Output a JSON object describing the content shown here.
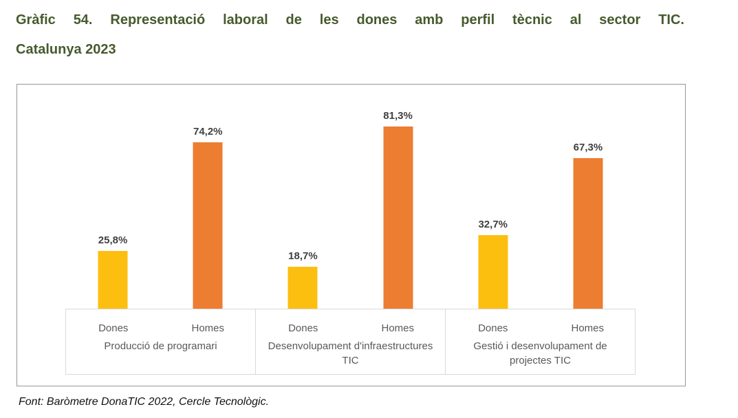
{
  "page": {
    "title_line1": "Gràfic 54. Representació laboral de les dones amb perfil tècnic al sector TIC.",
    "title_line2": "Catalunya 2023",
    "source": "Font: Baròmetre DonaTIC 2022, Cercle Tecnològic."
  },
  "colors": {
    "title_green": "#465A2D",
    "bar_dones": "#FCBF10",
    "bar_homes": "#ED7D31",
    "value_label": "#404040",
    "axis_text": "#595959",
    "frame_border": "#969696",
    "table_border": "#D9D9D9"
  },
  "chart_data": {
    "type": "bar",
    "categories": [
      "Producció de programari",
      "Desenvolupament d'infraestructures TIC",
      "Gestió i desenvolupament de projectes TIC"
    ],
    "series": [
      {
        "name": "Dones",
        "values": [
          25.8,
          18.7,
          32.7
        ],
        "color": "#FCBF10"
      },
      {
        "name": "Homes",
        "values": [
          74.2,
          81.3,
          67.3
        ],
        "color": "#ED7D31"
      }
    ],
    "value_labels": [
      [
        "25,8%",
        "74,2%"
      ],
      [
        "18,7%",
        "81,3%"
      ],
      [
        "32,7%",
        "67,3%"
      ]
    ],
    "xlabel": "",
    "ylabel": "",
    "ylim": [
      0,
      100
    ],
    "grid": false,
    "legend_position": "none"
  }
}
